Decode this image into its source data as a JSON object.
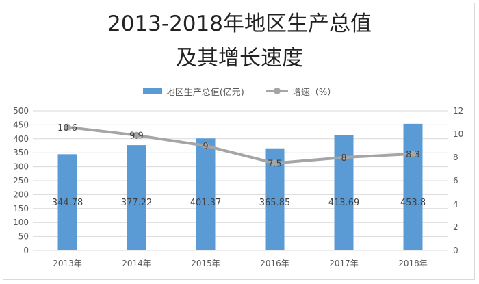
{
  "chart_data": {
    "type": "bar",
    "title": "2013-2018年地区生产总值",
    "subtitle": "及其增长速度",
    "categories": [
      "2013年",
      "2014年",
      "2015年",
      "2016年",
      "2017年",
      "2018年"
    ],
    "series": [
      {
        "name": "地区生产总值(亿元)",
        "type": "bar",
        "axis": "left",
        "color": "#5b9bd5",
        "values": [
          344.78,
          377.22,
          401.37,
          365.85,
          413.69,
          453.8
        ],
        "labels": [
          "344.78",
          "377.22",
          "401.37",
          "365.85",
          "413.69",
          "453.8"
        ]
      },
      {
        "name": "增速（%）",
        "type": "line",
        "axis": "right",
        "color": "#a5a5a5",
        "values": [
          10.6,
          9.9,
          9,
          7.5,
          8,
          8.3
        ],
        "labels": [
          "10.6",
          "9.9",
          "9",
          "7.5",
          "8",
          "8.3"
        ]
      }
    ],
    "y_left": {
      "ylim": [
        0,
        500
      ],
      "ticks": [
        "0",
        "50",
        "100",
        "150",
        "200",
        "250",
        "300",
        "350",
        "400",
        "450",
        "500"
      ]
    },
    "y_right": {
      "ylim": [
        0,
        12
      ],
      "ticks": [
        "0",
        "2",
        "4",
        "6",
        "8",
        "10",
        "12"
      ]
    },
    "grid": true,
    "legend_position": "top"
  }
}
